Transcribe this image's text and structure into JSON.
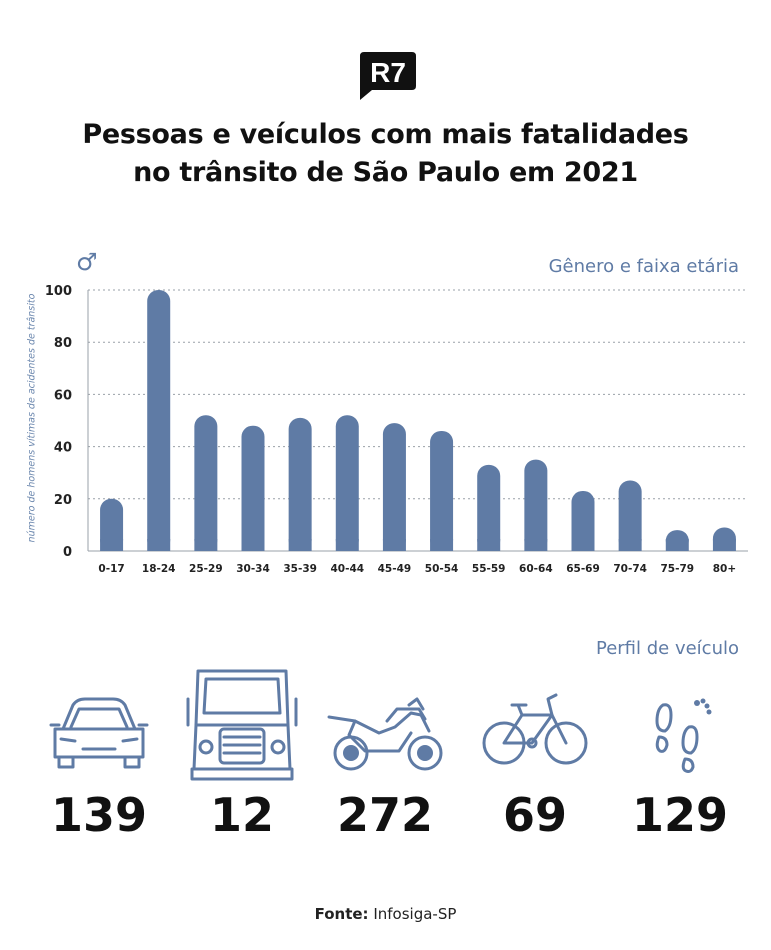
{
  "brand": "R7",
  "title": {
    "line1": "Pessoas e veículos com mais fatalidades",
    "line2": "no trânsito de São Paulo em 2021"
  },
  "gender_symbol": "♂",
  "accent_color": "#5f7ba5",
  "chart_data": {
    "type": "bar",
    "title": "Gênero e faixa etária",
    "xlabel": "",
    "ylabel": "número de homens vítimas de acidentes de trânsito",
    "categories": [
      "0-17",
      "18-24",
      "25-29",
      "30-34",
      "35-39",
      "40-44",
      "45-49",
      "50-54",
      "55-59",
      "60-64",
      "65-69",
      "70-74",
      "75-79",
      "80+"
    ],
    "values": [
      20,
      100,
      52,
      48,
      51,
      52,
      49,
      46,
      33,
      35,
      23,
      27,
      8,
      9
    ],
    "ylim": [
      0,
      100
    ],
    "yticks": [
      0,
      20,
      40,
      60,
      80,
      100
    ],
    "grid": true,
    "bar_color": "#5f7ba5"
  },
  "vehicles": {
    "section_title": "Perfil de veículo",
    "items": [
      {
        "icon": "car-icon",
        "value": "139"
      },
      {
        "icon": "truck-icon",
        "value": "12"
      },
      {
        "icon": "motorcycle-icon",
        "value": "272"
      },
      {
        "icon": "bicycle-icon",
        "value": "69"
      },
      {
        "icon": "footprints-icon",
        "value": "129"
      }
    ]
  },
  "source": {
    "label": "Fonte:",
    "value": "Infosiga-SP"
  }
}
